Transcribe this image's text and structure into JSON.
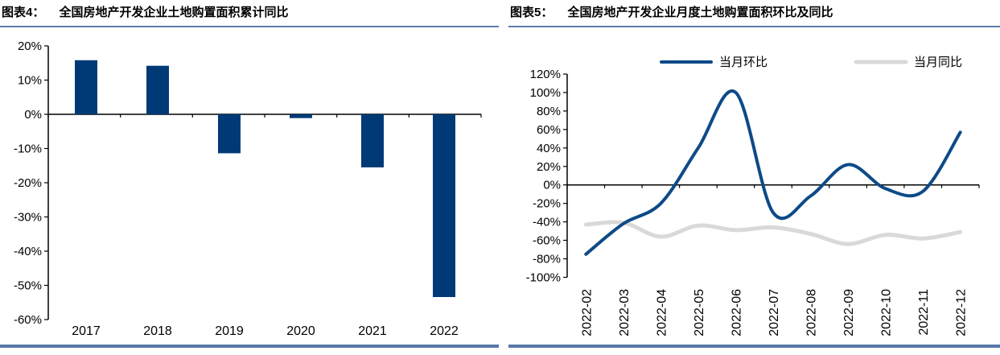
{
  "panels": [
    {
      "tag": "图表4：",
      "title": "全国房地产开发企业土地购置面积累计同比"
    },
    {
      "tag": "图表5：",
      "title": "全国房地产开发企业月度土地购置面积环比及同比"
    }
  ],
  "colors": {
    "bar_navy": "#003a76",
    "line_blue": "#0d4a87",
    "line_gray": "#d9d9d9",
    "axis_black": "#000000",
    "title_underline": "#5b7ca8",
    "bottom_rule": "#5878a8"
  },
  "chart_data": [
    {
      "type": "bar",
      "title": "全国房地产开发企业土地购置面积累计同比",
      "categories": [
        "2017",
        "2018",
        "2019",
        "2020",
        "2021",
        "2022"
      ],
      "values": [
        15.8,
        14.2,
        -11.4,
        -1.1,
        -15.5,
        -53.4
      ],
      "unit": "%",
      "ylim": [
        -60,
        20
      ],
      "ytick_step": 10,
      "yticks": [
        "20%",
        "10%",
        "0%",
        "-10%",
        "-20%",
        "-30%",
        "-40%",
        "-50%",
        "-60%"
      ],
      "bar_color": "#003a76",
      "grid": false,
      "legend": "none"
    },
    {
      "type": "line",
      "title": "全国房地产开发企业月度土地购置面积环比及同比",
      "x": [
        "2022-02",
        "2022-03",
        "2022-04",
        "2022-05",
        "2022-06",
        "2022-07",
        "2022-08",
        "2022-09",
        "2022-10",
        "2022-11",
        "2022-12"
      ],
      "series": [
        {
          "name": "当月环比",
          "color": "#0d4a87",
          "stroke_width": 4,
          "values": [
            -75,
            -42,
            -20,
            40,
            100,
            -30,
            -12,
            22,
            -4,
            -7,
            57
          ]
        },
        {
          "name": "当月同比",
          "color": "#d9d9d9",
          "stroke_width": 5,
          "values": [
            -43,
            -41,
            -56,
            -44,
            -49,
            -46,
            -53,
            -64,
            -54,
            -58,
            -51
          ]
        }
      ],
      "unit": "%",
      "ylim": [
        -100,
        120
      ],
      "ytick_step": 20,
      "yticks": [
        "120%",
        "100%",
        "80%",
        "60%",
        "40%",
        "20%",
        "0%",
        "-20%",
        "-40%",
        "-60%",
        "-80%",
        "-100%"
      ],
      "grid": false,
      "legend_position": "top",
      "x_label_rotation": -90
    }
  ]
}
